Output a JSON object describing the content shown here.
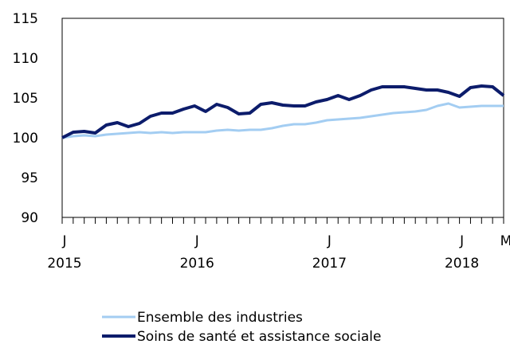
{
  "chart_data": {
    "type": "line",
    "categories": [
      {
        "month": "J",
        "year": "2015"
      },
      null,
      null,
      null,
      null,
      null,
      null,
      null,
      null,
      null,
      null,
      null,
      {
        "month": "J",
        "year": "2016"
      },
      null,
      null,
      null,
      null,
      null,
      null,
      null,
      null,
      null,
      null,
      null,
      {
        "month": "J",
        "year": "2017"
      },
      null,
      null,
      null,
      null,
      null,
      null,
      null,
      null,
      null,
      null,
      null,
      {
        "month": "J",
        "year": "2018"
      },
      null,
      null,
      null,
      {
        "month": "M"
      }
    ],
    "series": [
      {
        "name": "Ensemble des industries",
        "color": "#a3cdf2",
        "values": [
          100.0,
          100.2,
          100.3,
          100.2,
          100.4,
          100.5,
          100.6,
          100.7,
          100.6,
          100.7,
          100.6,
          100.7,
          100.7,
          100.7,
          100.9,
          101.0,
          100.9,
          101.0,
          101.0,
          101.2,
          101.5,
          101.7,
          101.7,
          101.9,
          102.2,
          102.3,
          102.4,
          102.5,
          102.7,
          102.9,
          103.1,
          103.2,
          103.3,
          103.5,
          104.0,
          104.3,
          103.8,
          103.9,
          104.0,
          104.0,
          104.0
        ]
      },
      {
        "name": "Soins de santé et assistance sociale",
        "color": "#0c1c6b",
        "values": [
          100.0,
          100.7,
          100.8,
          100.6,
          101.6,
          101.9,
          101.4,
          101.8,
          102.7,
          103.1,
          103.1,
          103.6,
          104.0,
          103.3,
          104.2,
          103.8,
          103.0,
          103.1,
          104.2,
          104.4,
          104.1,
          104.0,
          104.0,
          104.5,
          104.8,
          105.3,
          104.8,
          105.3,
          106.0,
          106.4,
          106.4,
          106.4,
          106.2,
          106.0,
          106.0,
          105.7,
          105.2,
          106.3,
          106.5,
          106.4,
          105.3
        ]
      }
    ],
    "ylim": [
      90,
      115
    ],
    "yticks": [
      90,
      95,
      100,
      105,
      110,
      115
    ],
    "grid": false
  }
}
